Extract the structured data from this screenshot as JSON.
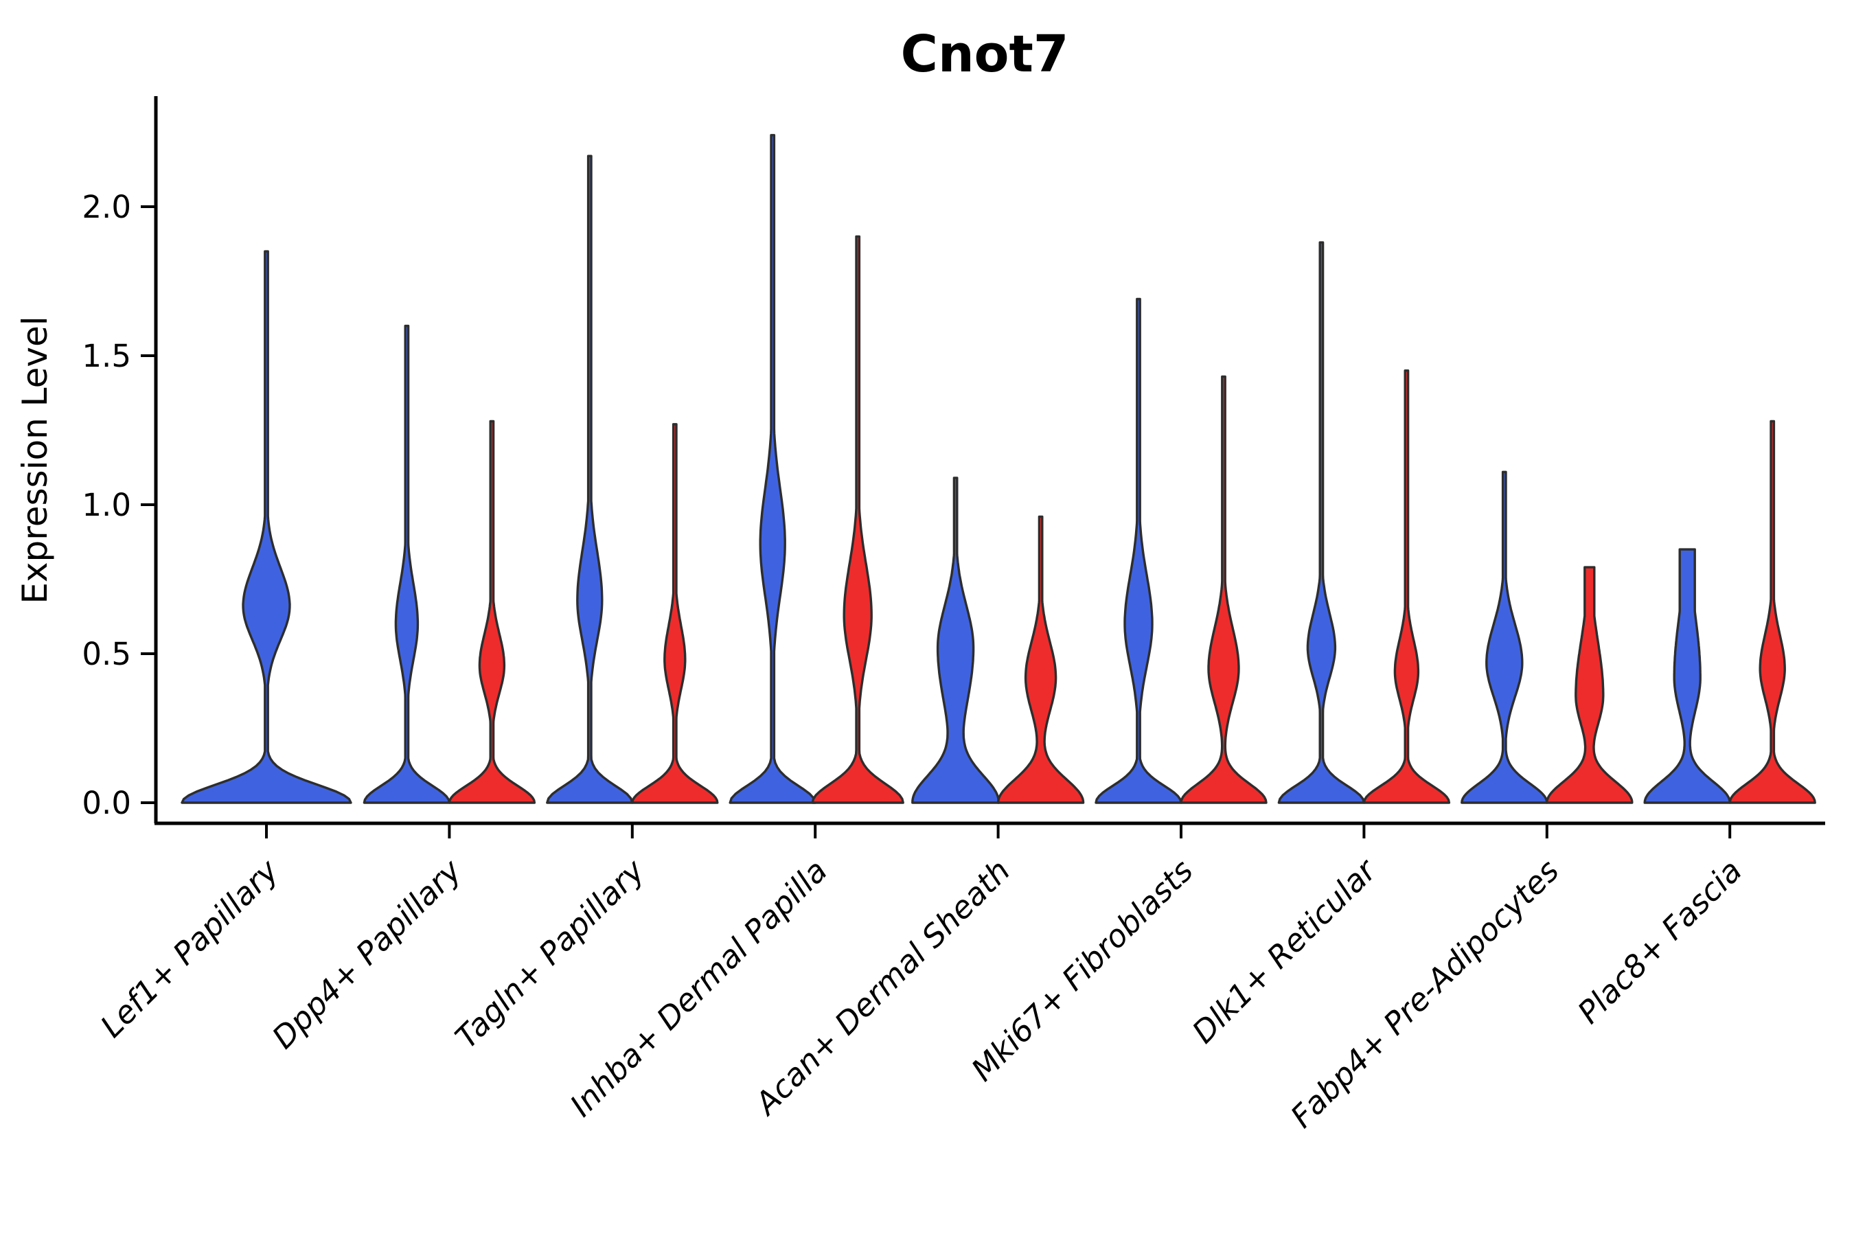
{
  "chart_data": {
    "type": "violin",
    "title": "Cnot7",
    "ylabel": "Expression Level",
    "xlabel": "",
    "ylim": [
      0,
      2.37
    ],
    "yticks": [
      0.0,
      0.5,
      1.0,
      1.5,
      2.0
    ],
    "ytick_labels": [
      "0.0",
      "0.5",
      "1.0",
      "1.5",
      "2.0"
    ],
    "grid": false,
    "legend": "none",
    "categories": [
      "Lef1+ Papillary",
      "Dpp4+ Papillary",
      "Tagln+ Papillary",
      "Inhba+ Dermal Papilla",
      "Acan+ Dermal Sheath",
      "Mki67+ Fibroblasts",
      "Dlk1+ Reticular",
      "Fabp4+ Pre-Adipocytes",
      "Plac8+ Fascia"
    ],
    "series": [
      {
        "name": "blue",
        "color": "#3F63E0",
        "max_expression": [
          1.85,
          1.6,
          2.17,
          2.24,
          1.09,
          1.69,
          1.88,
          1.11,
          0.85
        ]
      },
      {
        "name": "red",
        "color": "#EE2C2C",
        "max_expression": [
          null,
          1.28,
          1.27,
          1.9,
          0.96,
          1.43,
          1.45,
          0.79,
          1.28
        ]
      }
    ],
    "violins": [
      {
        "category_index": 0,
        "hue": "blue",
        "x_offset": 0,
        "max": 1.85,
        "zero_peak_halfwidth": 123,
        "zero_sigma": 0.085,
        "mode2": 0.66,
        "mode2_halfwidth": 34,
        "sigma_below": 0.16,
        "sigma_above": 0.18,
        "top": "needle",
        "top_halfwidth": 2.2
      },
      {
        "category_index": 1,
        "hue": "blue",
        "x_offset": -62,
        "max": 1.6,
        "zero_peak_halfwidth": 62,
        "zero_sigma": 0.08,
        "mode2": 0.6,
        "mode2_halfwidth": 16,
        "sigma_below": 0.17,
        "sigma_above": 0.19,
        "top": "needle",
        "top_halfwidth": 2.2
      },
      {
        "category_index": 1,
        "hue": "red",
        "x_offset": 62,
        "max": 1.28,
        "zero_peak_halfwidth": 62,
        "zero_sigma": 0.08,
        "mode2": 0.46,
        "mode2_halfwidth": 18,
        "sigma_below": 0.13,
        "sigma_above": 0.15,
        "top": "needle",
        "top_halfwidth": 2.2
      },
      {
        "category_index": 2,
        "hue": "blue",
        "x_offset": -62,
        "max": 2.17,
        "zero_peak_halfwidth": 62,
        "zero_sigma": 0.08,
        "mode2": 0.68,
        "mode2_halfwidth": 18,
        "sigma_below": 0.19,
        "sigma_above": 0.23,
        "top": "needle",
        "top_halfwidth": 2.2
      },
      {
        "category_index": 2,
        "hue": "red",
        "x_offset": 62,
        "max": 1.27,
        "zero_peak_halfwidth": 62,
        "zero_sigma": 0.08,
        "mode2": 0.48,
        "mode2_halfwidth": 15,
        "sigma_below": 0.14,
        "sigma_above": 0.16,
        "top": "needle",
        "top_halfwidth": 2.2
      },
      {
        "category_index": 3,
        "hue": "blue",
        "x_offset": -62,
        "max": 2.24,
        "zero_peak_halfwidth": 62,
        "zero_sigma": 0.08,
        "mode2": 0.87,
        "mode2_halfwidth": 18,
        "sigma_below": 0.25,
        "sigma_above": 0.26,
        "top": "needle",
        "top_halfwidth": 2.2
      },
      {
        "category_index": 3,
        "hue": "red",
        "x_offset": 62,
        "max": 1.9,
        "zero_peak_halfwidth": 66,
        "zero_sigma": 0.09,
        "mode2": 0.63,
        "mode2_halfwidth": 20,
        "sigma_below": 0.21,
        "sigma_above": 0.24,
        "top": "needle",
        "top_halfwidth": 2.2
      },
      {
        "category_index": 4,
        "hue": "blue",
        "x_offset": -62,
        "max": 1.09,
        "zero_peak_halfwidth": 62,
        "zero_sigma": 0.13,
        "mode2": 0.52,
        "mode2_halfwidth": 26,
        "sigma_below": 0.28,
        "sigma_above": 0.2,
        "top": "needle",
        "top_halfwidth": 2.2
      },
      {
        "category_index": 4,
        "hue": "red",
        "x_offset": 62,
        "max": 0.96,
        "zero_peak_halfwidth": 62,
        "zero_sigma": 0.11,
        "mode2": 0.42,
        "mode2_halfwidth": 22,
        "sigma_below": 0.16,
        "sigma_above": 0.17,
        "top": "needle",
        "top_halfwidth": 2.2
      },
      {
        "category_index": 5,
        "hue": "blue",
        "x_offset": -62,
        "max": 1.69,
        "zero_peak_halfwidth": 62,
        "zero_sigma": 0.08,
        "mode2": 0.6,
        "mode2_halfwidth": 20,
        "sigma_below": 0.2,
        "sigma_above": 0.23,
        "top": "needle",
        "top_halfwidth": 2.2
      },
      {
        "category_index": 5,
        "hue": "red",
        "x_offset": 62,
        "max": 1.43,
        "zero_peak_halfwidth": 62,
        "zero_sigma": 0.09,
        "mode2": 0.45,
        "mode2_halfwidth": 22,
        "sigma_below": 0.16,
        "sigma_above": 0.19,
        "top": "needle",
        "top_halfwidth": 2.2
      },
      {
        "category_index": 6,
        "hue": "blue",
        "x_offset": -62,
        "max": 1.88,
        "zero_peak_halfwidth": 62,
        "zero_sigma": 0.08,
        "mode2": 0.52,
        "mode2_halfwidth": 20,
        "sigma_below": 0.14,
        "sigma_above": 0.16,
        "top": "needle",
        "top_halfwidth": 2.2
      },
      {
        "category_index": 6,
        "hue": "red",
        "x_offset": 62,
        "max": 1.45,
        "zero_peak_halfwidth": 62,
        "zero_sigma": 0.08,
        "mode2": 0.44,
        "mode2_halfwidth": 17,
        "sigma_below": 0.13,
        "sigma_above": 0.15,
        "top": "needle",
        "top_halfwidth": 2.2
      },
      {
        "category_index": 7,
        "hue": "blue",
        "x_offset": -62,
        "max": 1.11,
        "zero_peak_halfwidth": 62,
        "zero_sigma": 0.09,
        "mode2": 0.47,
        "mode2_halfwidth": 26,
        "sigma_below": 0.16,
        "sigma_above": 0.18,
        "top": "needle",
        "top_halfwidth": 2.2
      },
      {
        "category_index": 7,
        "hue": "red",
        "x_offset": 62,
        "max": 0.79,
        "zero_peak_halfwidth": 62,
        "zero_sigma": 0.1,
        "mode2": 0.36,
        "mode2_halfwidth": 20,
        "sigma_below": 0.14,
        "sigma_above": 0.26,
        "top": "blunt",
        "top_halfwidth": 7
      },
      {
        "category_index": 8,
        "hue": "blue",
        "x_offset": -62,
        "max": 0.85,
        "zero_peak_halfwidth": 62,
        "zero_sigma": 0.1,
        "mode2": 0.42,
        "mode2_halfwidth": 19,
        "sigma_below": 0.16,
        "sigma_above": 0.3,
        "top": "blunt",
        "top_halfwidth": 11
      },
      {
        "category_index": 8,
        "hue": "red",
        "x_offset": 62,
        "max": 1.28,
        "zero_peak_halfwidth": 62,
        "zero_sigma": 0.09,
        "mode2": 0.45,
        "mode2_halfwidth": 18,
        "sigma_below": 0.14,
        "sigma_above": 0.16,
        "top": "needle",
        "top_halfwidth": 2.2
      }
    ],
    "colors": {
      "blue_fill": "#3F63E0",
      "red_fill": "#EE2C2C",
      "violin_edge": "#2D2D2D",
      "axis": "#000000",
      "background": "#FFFFFF"
    }
  }
}
